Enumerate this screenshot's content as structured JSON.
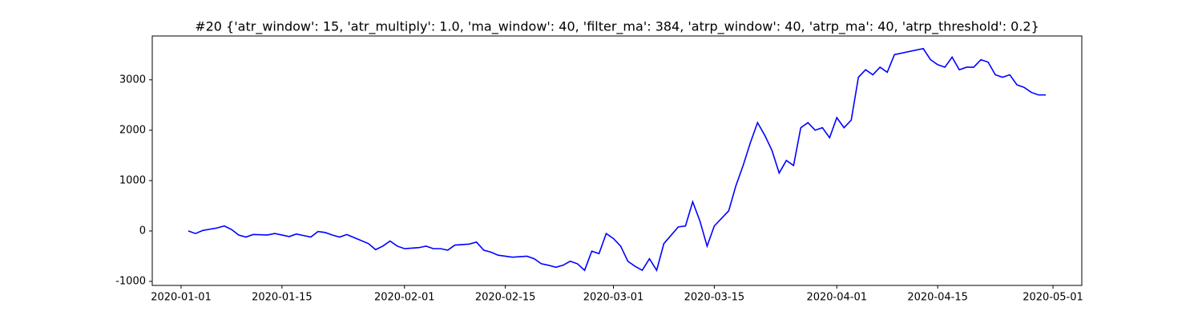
{
  "chart_data": {
    "type": "line",
    "title": "#20 {'atr_window': 15, 'atr_multiply': 1.0, 'ma_window': 40, 'filter_ma': 384, 'atrp_window': 40, 'atrp_ma': 40, 'atrp_threshold': 0.2}",
    "x": [
      "2020-01-02",
      "2020-01-03",
      "2020-01-04",
      "2020-01-06",
      "2020-01-07",
      "2020-01-08",
      "2020-01-09",
      "2020-01-10",
      "2020-01-11",
      "2020-01-13",
      "2020-01-14",
      "2020-01-15",
      "2020-01-16",
      "2020-01-17",
      "2020-01-18",
      "2020-01-19",
      "2020-01-20",
      "2020-01-21",
      "2020-01-22",
      "2020-01-23",
      "2020-01-24",
      "2020-01-25",
      "2020-01-27",
      "2020-01-28",
      "2020-01-29",
      "2020-01-30",
      "2020-01-31",
      "2020-02-01",
      "2020-02-03",
      "2020-02-04",
      "2020-02-05",
      "2020-02-06",
      "2020-02-07",
      "2020-02-08",
      "2020-02-10",
      "2020-02-11",
      "2020-02-12",
      "2020-02-13",
      "2020-02-14",
      "2020-02-15",
      "2020-02-16",
      "2020-02-18",
      "2020-02-19",
      "2020-02-20",
      "2020-02-21",
      "2020-02-22",
      "2020-02-23",
      "2020-02-24",
      "2020-02-25",
      "2020-02-26",
      "2020-02-27",
      "2020-02-28",
      "2020-02-29",
      "2020-03-01",
      "2020-03-02",
      "2020-03-03",
      "2020-03-04",
      "2020-03-05",
      "2020-03-06",
      "2020-03-07",
      "2020-03-08",
      "2020-03-10",
      "2020-03-11",
      "2020-03-12",
      "2020-03-13",
      "2020-03-14",
      "2020-03-15",
      "2020-03-17",
      "2020-03-18",
      "2020-03-19",
      "2020-03-20",
      "2020-03-21",
      "2020-03-22",
      "2020-03-23",
      "2020-03-24",
      "2020-03-25",
      "2020-03-26",
      "2020-03-27",
      "2020-03-28",
      "2020-03-29",
      "2020-03-30",
      "2020-03-31",
      "2020-04-01",
      "2020-04-02",
      "2020-04-03",
      "2020-04-04",
      "2020-04-05",
      "2020-04-06",
      "2020-04-07",
      "2020-04-08",
      "2020-04-09",
      "2020-04-13",
      "2020-04-14",
      "2020-04-15",
      "2020-04-16",
      "2020-04-17",
      "2020-04-18",
      "2020-04-19",
      "2020-04-20",
      "2020-04-21",
      "2020-04-22",
      "2020-04-23",
      "2020-04-24",
      "2020-04-25",
      "2020-04-26",
      "2020-04-27",
      "2020-04-28",
      "2020-04-29",
      "2020-04-30"
    ],
    "values": [
      0,
      -50,
      10,
      60,
      100,
      30,
      -80,
      -120,
      -70,
      -80,
      -50,
      -80,
      -110,
      -60,
      -90,
      -120,
      -10,
      -30,
      -80,
      -120,
      -70,
      -130,
      -250,
      -370,
      -300,
      -200,
      -300,
      -350,
      -330,
      -300,
      -350,
      -350,
      -380,
      -280,
      -260,
      -220,
      -380,
      -420,
      -480,
      -500,
      -520,
      -500,
      -550,
      -650,
      -680,
      -720,
      -680,
      -600,
      -650,
      -780,
      -400,
      -450,
      -50,
      -150,
      -300,
      -600,
      -700,
      -780,
      -550,
      -780,
      -250,
      80,
      100,
      580,
      200,
      -300,
      100,
      400,
      900,
      1300,
      1750,
      2150,
      1900,
      1600,
      1150,
      1400,
      1300,
      2050,
      2150,
      2000,
      2050,
      1850,
      2250,
      2050,
      2200,
      3050,
      3200,
      3100,
      3250,
      3150,
      3500,
      3620,
      3400,
      3300,
      3250,
      3450,
      3200,
      3250,
      3250,
      3400,
      3350,
      3100,
      3050,
      3100,
      2900,
      2850,
      2750,
      2700,
      2700
    ],
    "color": "#0000ff",
    "xlim": [
      "2019-12-28",
      "2020-05-05"
    ],
    "xticks": [
      "2020-01-01",
      "2020-01-15",
      "2020-02-01",
      "2020-02-15",
      "2020-03-01",
      "2020-03-15",
      "2020-04-01",
      "2020-04-15",
      "2020-05-01"
    ],
    "ylim": [
      -1080,
      3870
    ],
    "yticks": [
      -1000,
      0,
      1000,
      2000,
      3000
    ]
  }
}
